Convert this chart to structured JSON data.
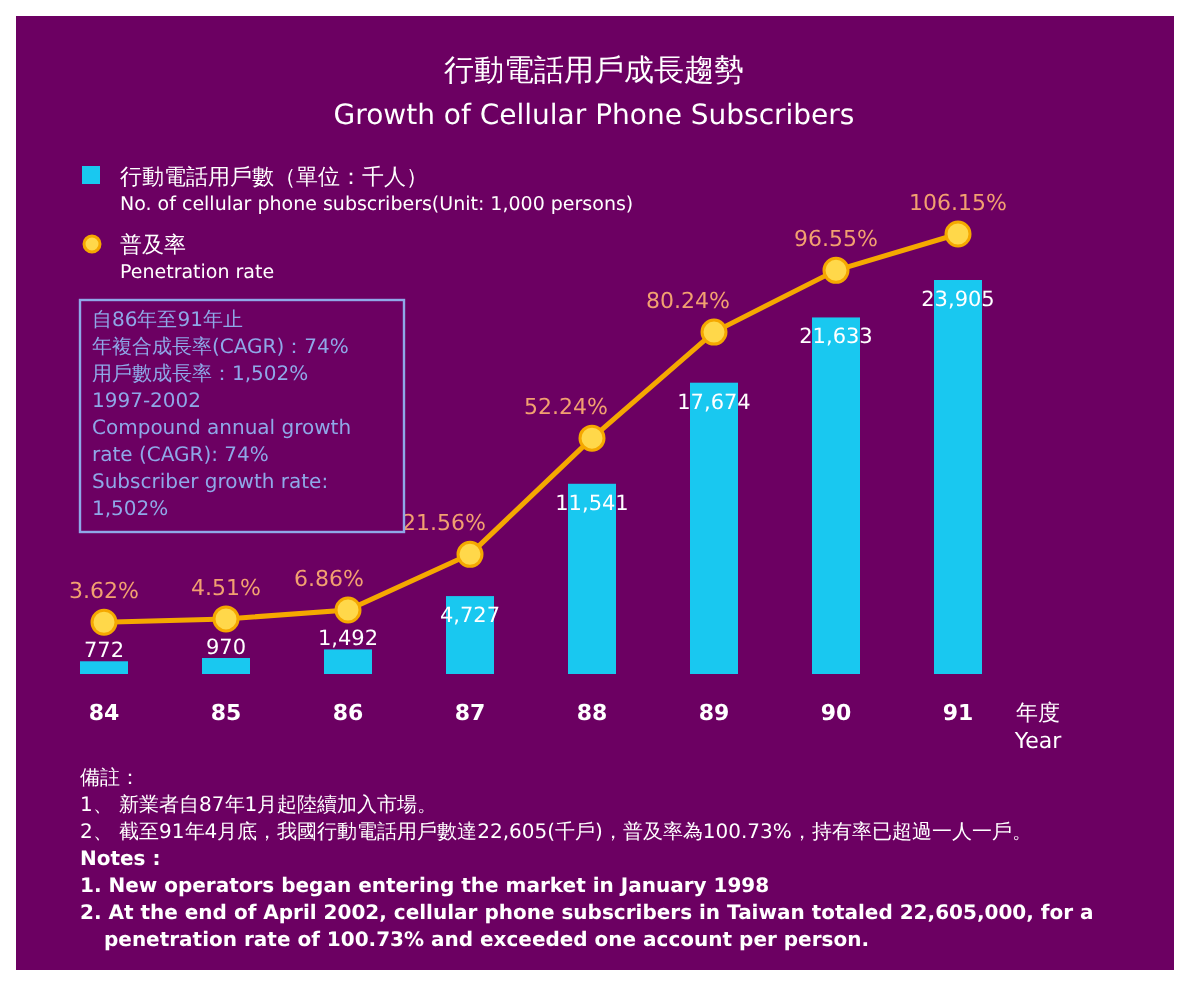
{
  "chart_data": {
    "type": "bar",
    "title": "行動電話用戶成長趨勢",
    "subtitle": "Growth of Cellular Phone Subscribers",
    "xlabel": "年度\nYear",
    "categories": [
      "84",
      "85",
      "86",
      "87",
      "88",
      "89",
      "90",
      "91"
    ],
    "series": [
      {
        "name": "行動電話用戶數（單位：千人）\nNo. of cellular phone subscribers(Unit: 1,000 persons)",
        "color": "#19c8f0",
        "values": [
          772,
          970,
          1492,
          4727,
          11541,
          17674,
          21633,
          23905
        ],
        "value_labels": [
          "772",
          "970",
          "1,492",
          "4,727",
          "11,541",
          "17,674",
          "21,633",
          "23,905"
        ]
      },
      {
        "name": "普及率\nPenetration rate",
        "type": "line",
        "axis": "y2",
        "color": "#f5a800",
        "marker": "circle",
        "values": [
          3.62,
          4.51,
          6.86,
          21.56,
          52.24,
          80.24,
          96.55,
          106.15
        ],
        "value_labels": [
          "3.62%",
          "4.51%",
          "6.86%",
          "21.56%",
          "52.24%",
          "80.24%",
          "96.55%",
          "106.15%"
        ]
      }
    ],
    "legend": "top left",
    "grid": false,
    "annotations": [
      "自86年至91年止",
      "年複合成長率(CAGR)：74%",
      "用戶數成長率：1,502%",
      "1997-2002",
      "Compound annual growth rate (CAGR): 74%",
      "Subscriber growth rate: 1,502%",
      "備註：",
      "1、 新業者自87年1月起陸續加入市場。",
      "2、 截至91年4月底，我國行動電話用戶數達22,605(千戶)，普及率為100.73%，持有率已超過一人一戶。",
      "Notes :",
      "1. New operators began entering the market in January 1998",
      "2. At the end of April 2002, cellular phone subscribers in Taiwan totaled 22,605,000, for a\npenetration rate of 100.73% and exceeded one account per person."
    ]
  }
}
